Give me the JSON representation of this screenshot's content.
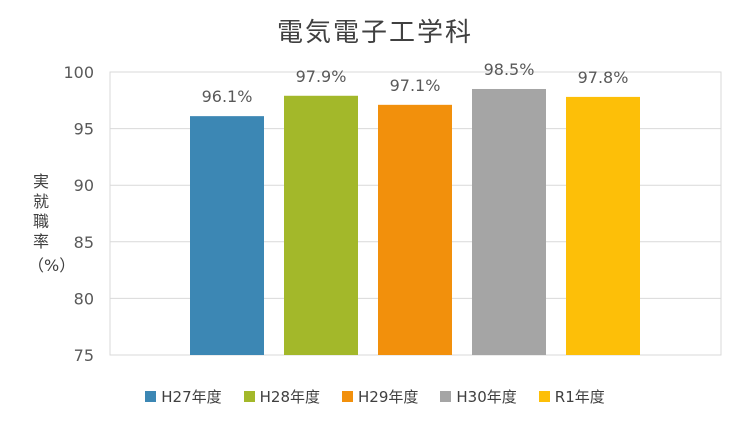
{
  "chart_data": {
    "type": "bar",
    "title": "電気電子工学科",
    "ylabel": "実就職率",
    "ylabel_unit": "（%）",
    "xlabel": "",
    "ylim": [
      75,
      100
    ],
    "yticks": [
      "75",
      "80",
      "85",
      "90",
      "95",
      "100"
    ],
    "grid": true,
    "legend_position": "bottom",
    "categories": [
      "H27年度",
      "H28年度",
      "H29年度",
      "H30年度",
      "R1年度"
    ],
    "values": [
      96.1,
      97.9,
      97.1,
      98.5,
      97.8
    ],
    "data_labels": [
      "96.1%",
      "97.9%",
      "97.1%",
      "98.5%",
      "97.8%"
    ],
    "colors": [
      "#3c87b4",
      "#a3b82a",
      "#f2900c",
      "#a5a5a5",
      "#fdbf08"
    ]
  }
}
